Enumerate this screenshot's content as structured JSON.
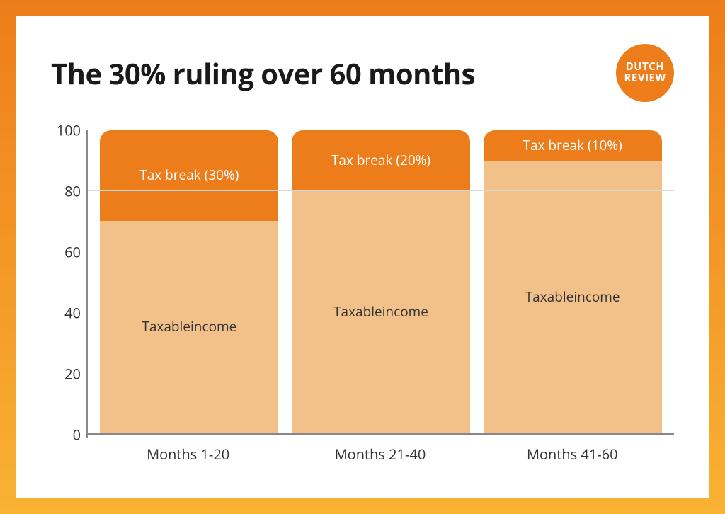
{
  "title": "The 30% ruling over 60 months",
  "logo": {
    "line1": "DUTCH",
    "line2": "REVIEW",
    "bg": "#ed7d1a",
    "fg": "#ffffff"
  },
  "chart": {
    "type": "stacked-bar",
    "ylim": [
      0,
      100
    ],
    "ytick_step": 20,
    "yticks": [
      0,
      20,
      40,
      60,
      80,
      100
    ],
    "axis_color": "#888888",
    "grid_color": "#d9d9d9",
    "background_color": "#ffffff",
    "label_fontsize": 20,
    "seg_fontsize": 19,
    "bar_corner_radius": 16,
    "categories": [
      "Months 1-20",
      "Months 21-40",
      "Months 41-60"
    ],
    "series": [
      {
        "key": "tax_break",
        "color": "#ed7d1a",
        "text_color": "#ffffff",
        "values": [
          30,
          20,
          10
        ],
        "labels": [
          "Tax break (30%)",
          "Tax break (20%)",
          "Tax break (10%)"
        ]
      },
      {
        "key": "taxable_income",
        "color": "#f2c18a",
        "text_color": "#333333",
        "values": [
          70,
          80,
          90
        ],
        "labels": [
          "Taxable\nincome",
          "Taxable\nincome",
          "Taxable\nincome"
        ]
      }
    ]
  },
  "frame_gradient": {
    "from": "#ed7d1a",
    "to": "#f9b233"
  }
}
